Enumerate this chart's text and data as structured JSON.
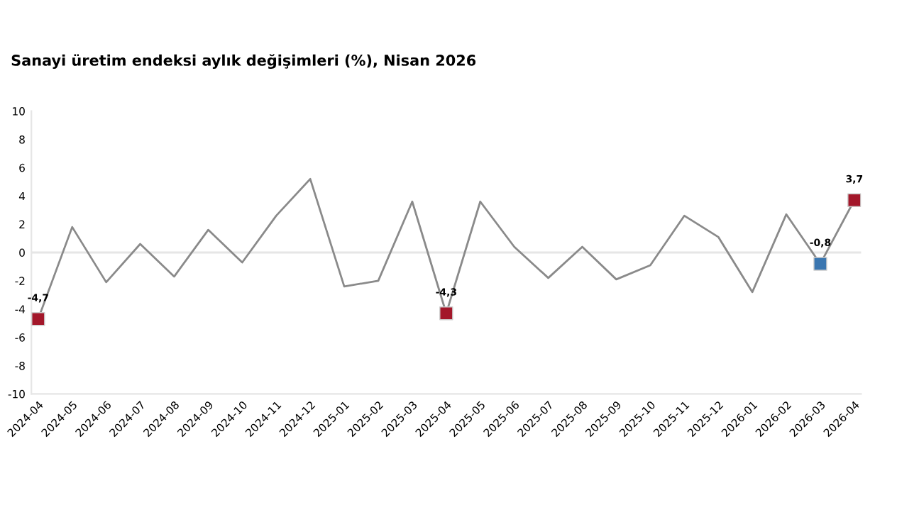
{
  "chart_data": {
    "type": "line",
    "title": "Sanayi üretim endeksi aylık değişimleri (%), Nisan 2026",
    "categories": [
      "2024-04",
      "2024-05",
      "2024-06",
      "2024-07",
      "2024-08",
      "2024-09",
      "2024-10",
      "2024-11",
      "2024-12",
      "2025-01",
      "2025-02",
      "2025-03",
      "2025-04",
      "2025-05",
      "2025-06",
      "2025-07",
      "2025-08",
      "2025-09",
      "2025-10",
      "2025-11",
      "2025-12",
      "2026-01",
      "2026-02",
      "2026-03",
      "2026-04"
    ],
    "series": [
      {
        "color": "#8a8a8a",
        "values": [
          -4.7,
          1.8,
          -2.1,
          0.6,
          -1.7,
          1.6,
          -0.7,
          2.6,
          5.2,
          -2.4,
          -2.0,
          3.6,
          -4.3,
          3.6,
          0.4,
          -1.8,
          0.4,
          -1.9,
          -0.9,
          2.6,
          1.1,
          -2.8,
          2.7,
          -0.8,
          3.7
        ]
      },
      {
        "type": "scatter",
        "marker": "square",
        "values": [
          -4.7,
          null,
          null,
          null,
          null,
          null,
          null,
          null,
          null,
          null,
          null,
          null,
          -4.3,
          null,
          null,
          null,
          null,
          null,
          null,
          null,
          null,
          null,
          null,
          -0.8,
          3.7
        ],
        "colors": [
          "#a3172a",
          null,
          null,
          null,
          null,
          null,
          null,
          null,
          null,
          null,
          null,
          null,
          "#a3172a",
          null,
          null,
          null,
          null,
          null,
          null,
          null,
          null,
          null,
          null,
          "#3a76b0",
          "#a3172a"
        ],
        "value_labels": [
          "-4,7",
          null,
          null,
          null,
          null,
          null,
          null,
          null,
          null,
          null,
          null,
          null,
          "-4,3",
          null,
          null,
          null,
          null,
          null,
          null,
          null,
          null,
          null,
          null,
          "-0,8",
          "3,7"
        ]
      }
    ],
    "ylim": [
      -10,
      10
    ],
    "yticks": [
      -10,
      -8,
      -6,
      -4,
      -2,
      0,
      2,
      4,
      6,
      8,
      10
    ],
    "ref_lines": [
      {
        "axis": "y",
        "value": 0,
        "color": "#e6e6e6"
      }
    ],
    "grid": false,
    "legend": false
  }
}
